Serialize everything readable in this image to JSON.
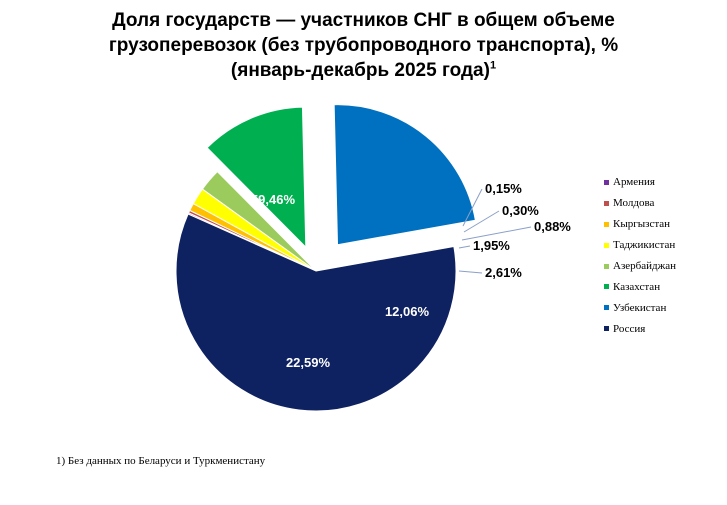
{
  "chart_data": {
    "type": "pie",
    "title_line1": "Доля государств — участников СНГ в общем объеме",
    "title_line2": "грузоперевозок (без трубопроводного транспорта), %",
    "title_line3": "(январь-декабрь 2025 года)",
    "title_sup": "1",
    "series": [
      {
        "name": "Армения",
        "value": 0.15,
        "label": "0,15%",
        "color": "#7030a0"
      },
      {
        "name": "Молдова",
        "value": 0.3,
        "label": "0,30%",
        "color": "#c0504d"
      },
      {
        "name": "Кыргызстан",
        "value": 0.88,
        "label": "0,88%",
        "color": "#ffc000"
      },
      {
        "name": "Таджикистан",
        "value": 1.95,
        "label": "1,95%",
        "color": "#ffff00"
      },
      {
        "name": "Азербайджан",
        "value": 2.61,
        "label": "2,61%",
        "color": "#9bcb5c"
      },
      {
        "name": "Казахстан",
        "value": 12.06,
        "label": "12,06%",
        "color": "#00b050"
      },
      {
        "name": "Узбекистан",
        "value": 22.59,
        "label": "22,59%",
        "color": "#0070c0"
      },
      {
        "name": "Россия",
        "value": 59.46,
        "label": "59,46%",
        "color": "#0e2160"
      }
    ],
    "legend_position": "right",
    "footnote": "1) Без данных по Беларуси и Туркменистану"
  }
}
